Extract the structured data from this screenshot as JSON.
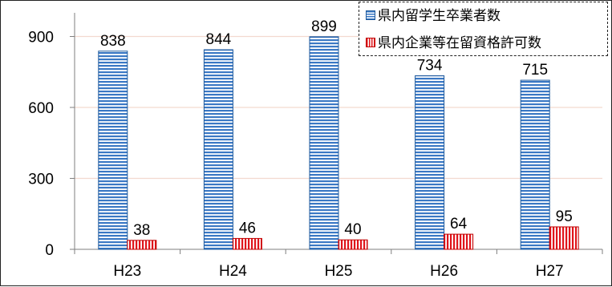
{
  "chart_data": {
    "type": "bar",
    "categories": [
      "H23",
      "H24",
      "H25",
      "H26",
      "H27"
    ],
    "series": [
      {
        "name": "県内留学生卒業者数",
        "values": [
          838,
          844,
          899,
          734,
          715
        ],
        "color": "#3a78c4"
      },
      {
        "name": "県内企業等在留資格許可数",
        "values": [
          38,
          46,
          40,
          64,
          95
        ],
        "color": "#e0151b"
      }
    ],
    "ylim": [
      0,
      1000
    ],
    "yticks": [
      0,
      300,
      600,
      900
    ],
    "title": "",
    "xlabel": "",
    "ylabel": "",
    "grid": true,
    "gridColor": "#f3d9cf",
    "legend": "top-right"
  }
}
